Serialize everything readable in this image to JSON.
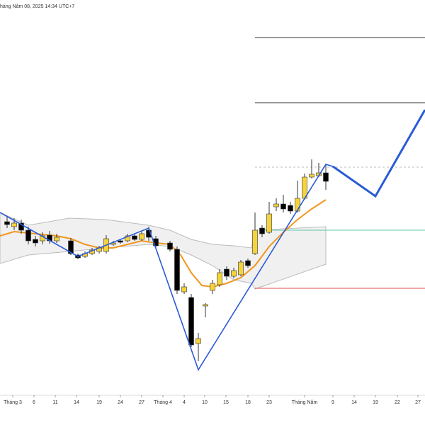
{
  "chart_data": {
    "type": "candlestick",
    "header": "háng Năm 08, 2025 14:34 UTC+7",
    "xlim": [
      -1,
      59
    ],
    "ylim": [
      0,
      600
    ],
    "xticks": [
      {
        "value": 0.8,
        "label": "Tháng 3"
      },
      {
        "value": 3.8,
        "label": "6"
      },
      {
        "value": 6.8,
        "label": "11"
      },
      {
        "value": 9.8,
        "label": "14"
      },
      {
        "value": 13,
        "label": "19"
      },
      {
        "value": 16,
        "label": "24"
      },
      {
        "value": 19,
        "label": "27"
      },
      {
        "value": 22,
        "label": "Tháng 4"
      },
      {
        "value": 25,
        "label": "4"
      },
      {
        "value": 27.9,
        "label": "10"
      },
      {
        "value": 30.9,
        "label": "15"
      },
      {
        "value": 34,
        "label": "18"
      },
      {
        "value": 37,
        "label": "23"
      },
      {
        "value": 42,
        "label": "Tháng Năm"
      },
      {
        "value": 46,
        "label": "9"
      },
      {
        "value": 49,
        "label": "14"
      },
      {
        "value": 52,
        "label": "19"
      },
      {
        "value": 55.1,
        "label": "22"
      },
      {
        "value": 58,
        "label": "27"
      }
    ],
    "up_color": "#f5d33a",
    "down_color": "#000000",
    "x": [
      0,
      1,
      2,
      3,
      4,
      5,
      6,
      7,
      9,
      10,
      11,
      12,
      13,
      14,
      15,
      16,
      17,
      18,
      19,
      20,
      21,
      23,
      24,
      25,
      26,
      27,
      28,
      29,
      30,
      31,
      32,
      33,
      34,
      35,
      36,
      37,
      38,
      39,
      40,
      41,
      42,
      43,
      44,
      45
    ],
    "open": [
      287,
      280,
      285,
      275,
      262,
      260,
      268,
      260,
      260,
      240,
      238,
      242,
      245,
      245,
      255,
      260,
      260,
      267,
      262,
      275,
      263,
      257,
      248,
      188,
      180,
      115,
      168,
      190,
      198,
      220,
      210,
      212,
      232,
      242,
      278,
      272,
      308,
      312,
      310,
      302,
      320,
      350,
      352,
      356
    ],
    "high": [
      295,
      292,
      290,
      280,
      267,
      272,
      274,
      270,
      264,
      242,
      245,
      250,
      253,
      268,
      260,
      262,
      270,
      269,
      274,
      280,
      267,
      260,
      252,
      200,
      185,
      130,
      172,
      205,
      220,
      224,
      222,
      233,
      235,
      300,
      282,
      315,
      320,
      325,
      315,
      345,
      355,
      375,
      370,
      367
    ],
    "low": [
      278,
      275,
      270,
      255,
      252,
      255,
      256,
      257,
      240,
      234,
      236,
      240,
      242,
      242,
      253,
      256,
      258,
      260,
      260,
      260,
      250,
      245,
      185,
      185,
      110,
      90,
      152,
      185,
      195,
      205,
      207,
      210,
      222,
      240,
      265,
      270,
      302,
      300,
      298,
      300,
      318,
      348,
      350,
      332
    ],
    "close": [
      283,
      285,
      275,
      260,
      257,
      267,
      260,
      265,
      242,
      236,
      242,
      247,
      250,
      263,
      257,
      258,
      267,
      262,
      270,
      265,
      253,
      248,
      190,
      195,
      113,
      122,
      170,
      200,
      215,
      210,
      218,
      230,
      225,
      275,
      270,
      298,
      312,
      305,
      302,
      320,
      350,
      354,
      356,
      344
    ],
    "ma": {
      "color": "#f0961e",
      "x": [
        -1,
        1,
        4,
        7,
        9,
        11,
        13,
        15,
        17,
        19,
        21,
        23,
        24.5,
        26,
        27.5,
        29,
        31,
        33,
        35,
        37,
        39,
        41,
        43,
        45
      ],
      "values": [
        267,
        273,
        270,
        267,
        263,
        255,
        250,
        250,
        255,
        260,
        257,
        255,
        240,
        215,
        197,
        195,
        200,
        208,
        225,
        252,
        272,
        290,
        305,
        318
      ]
    },
    "cloud": {
      "color": "#e6e6e6",
      "x": [
        -1,
        3,
        8.8,
        14,
        20,
        23,
        26,
        29,
        32,
        34.5,
        35,
        45
      ],
      "upper": [
        300,
        282,
        292,
        290,
        282,
        275,
        262,
        255,
        253,
        250,
        275,
        280
      ],
      "lower": [
        228,
        240,
        245,
        250,
        255,
        252,
        240,
        225,
        205,
        200,
        192,
        227
      ]
    },
    "zigzag": {
      "color": "#2a5bd7",
      "x": [
        -1,
        10,
        20,
        27,
        45,
        46
      ],
      "values": [
        300,
        238,
        278,
        78,
        368,
        365
      ]
    },
    "projection": {
      "color": "#2a5bd7",
      "x": [
        46,
        52,
        59
      ],
      "values": [
        365,
        323,
        445
      ]
    },
    "levels": [
      {
        "value": 547,
        "x": [
          35,
          59
        ],
        "color": "#333333",
        "dash": false
      },
      {
        "value": 455,
        "x": [
          35,
          59
        ],
        "color": "#333333",
        "dash": false
      },
      {
        "value": 364,
        "x": [
          35,
          59
        ],
        "color": "#bbbbbb",
        "dash": true
      },
      {
        "value": 275,
        "x": [
          36,
          59
        ],
        "color": "#5cc8a8",
        "dash": false
      },
      {
        "value": 193,
        "x": [
          35,
          59
        ],
        "color": "#e05050",
        "dash": false
      }
    ]
  }
}
